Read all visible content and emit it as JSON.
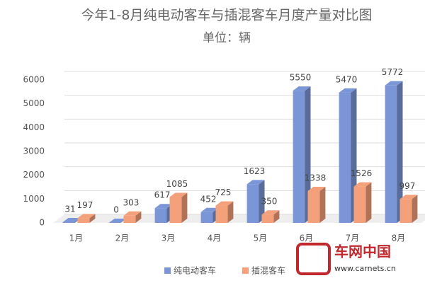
{
  "chart_data": {
    "type": "bar3d",
    "title": "今年1-8月纯电动客车与插混客车月度产量对比图",
    "subtitle": "单位：辆",
    "categories": [
      "1月",
      "2月",
      "3月",
      "4月",
      "5月",
      "6月",
      "7月",
      "8月"
    ],
    "series": [
      {
        "name": "纯电动客车",
        "color": "#7b96d6",
        "values": [
          31,
          0,
          617,
          452,
          1623,
          5550,
          5470,
          5772
        ]
      },
      {
        "name": "插混客车",
        "color": "#f4a07a",
        "values": [
          197,
          303,
          1085,
          725,
          350,
          1338,
          1526,
          997
        ]
      }
    ],
    "ylim": [
      0,
      6000
    ],
    "yticks": [
      0,
      1000,
      2000,
      3000,
      4000,
      5000,
      6000
    ],
    "grid": true,
    "legend": "bottom",
    "watermark": {
      "name": "车网中国",
      "url": "www.carnets.cn"
    }
  }
}
